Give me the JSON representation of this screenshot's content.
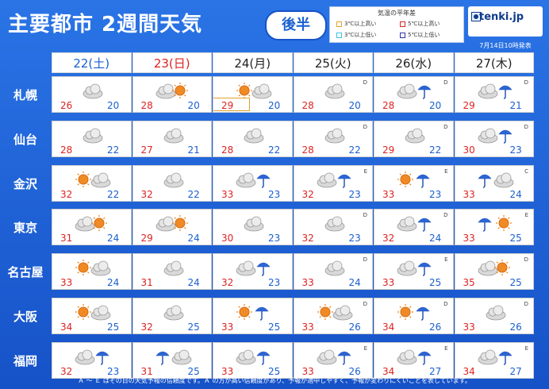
{
  "title": "主要都市 2週間天気",
  "badge": "後半",
  "legend": {
    "title": "気温の平年差",
    "items": [
      "3℃以上高い",
      "5℃以上高い",
      "3℃以上低い",
      "5℃以上低い"
    ],
    "colors": [
      "#e8a030",
      "#d22",
      "#3cc0e0",
      "#3030b0"
    ]
  },
  "logo": "tenki.jp",
  "issued": "7月14日10時発表",
  "days": [
    {
      "label": "22(土)",
      "color": "#1a5fd0"
    },
    {
      "label": "23(日)",
      "color": "#d22"
    },
    {
      "label": "24(月)",
      "color": "#222"
    },
    {
      "label": "25(火)",
      "color": "#222"
    },
    {
      "label": "26(水)",
      "color": "#222"
    },
    {
      "label": "27(木)",
      "color": "#222"
    }
  ],
  "cities": [
    {
      "name": "札幌",
      "cells": [
        {
          "w": "cloud",
          "hi": "26",
          "lo": "20"
        },
        {
          "w": "cloud-sun",
          "hi": "28",
          "lo": "20"
        },
        {
          "w": "sun-cloud",
          "hi": "29",
          "lo": "20",
          "mark": true
        },
        {
          "w": "cloud",
          "hi": "28",
          "lo": "20",
          "r": "D"
        },
        {
          "w": "cloud-rain",
          "hi": "28",
          "lo": "20",
          "r": "D"
        },
        {
          "w": "cloud-rain",
          "hi": "29",
          "lo": "21",
          "r": "D"
        }
      ]
    },
    {
      "name": "仙台",
      "cells": [
        {
          "w": "cloud",
          "hi": "28",
          "lo": "22"
        },
        {
          "w": "cloud",
          "hi": "27",
          "lo": "21"
        },
        {
          "w": "cloud",
          "hi": "28",
          "lo": "22"
        },
        {
          "w": "cloud",
          "hi": "28",
          "lo": "22",
          "r": "D"
        },
        {
          "w": "cloud",
          "hi": "29",
          "lo": "22",
          "r": "D"
        },
        {
          "w": "cloud-rain",
          "hi": "30",
          "lo": "23",
          "r": "D"
        }
      ]
    },
    {
      "name": "金沢",
      "cells": [
        {
          "w": "sun-cloud",
          "hi": "32",
          "lo": "22"
        },
        {
          "w": "cloud",
          "hi": "32",
          "lo": "22"
        },
        {
          "w": "cloud-rain",
          "hi": "33",
          "lo": "23"
        },
        {
          "w": "cloud-rain",
          "hi": "32",
          "lo": "23",
          "r": "E"
        },
        {
          "w": "sun-rain",
          "hi": "33",
          "lo": "23",
          "r": "E"
        },
        {
          "w": "rain-cloud",
          "hi": "33",
          "lo": "24",
          "r": "C"
        }
      ]
    },
    {
      "name": "東京",
      "cells": [
        {
          "w": "cloud-sun",
          "hi": "31",
          "lo": "24"
        },
        {
          "w": "cloud-sun",
          "hi": "29",
          "lo": "24"
        },
        {
          "w": "cloud",
          "hi": "30",
          "lo": "23"
        },
        {
          "w": "cloud",
          "hi": "32",
          "lo": "23",
          "r": "D"
        },
        {
          "w": "cloud-rain",
          "hi": "32",
          "lo": "24",
          "r": "D"
        },
        {
          "w": "rain-sun",
          "hi": "33",
          "lo": "25",
          "r": "E"
        }
      ]
    },
    {
      "name": "名古屋",
      "cells": [
        {
          "w": "sun-cloud",
          "hi": "33",
          "lo": "24"
        },
        {
          "w": "cloud",
          "hi": "31",
          "lo": "24"
        },
        {
          "w": "cloud-rain",
          "hi": "32",
          "lo": "23"
        },
        {
          "w": "cloud",
          "hi": "33",
          "lo": "24",
          "r": "D"
        },
        {
          "w": "cloud-rain",
          "hi": "33",
          "lo": "25",
          "r": "E"
        },
        {
          "w": "cloud-sun",
          "hi": "35",
          "lo": "25",
          "r": "D"
        }
      ]
    },
    {
      "name": "大阪",
      "cells": [
        {
          "w": "sun-cloud",
          "hi": "34",
          "lo": "25"
        },
        {
          "w": "cloud",
          "hi": "32",
          "lo": "25"
        },
        {
          "w": "sun-rain",
          "hi": "33",
          "lo": "25"
        },
        {
          "w": "sun-cloud",
          "hi": "33",
          "lo": "26",
          "r": "D"
        },
        {
          "w": "sun-rain",
          "hi": "34",
          "lo": "26",
          "r": "D"
        },
        {
          "w": "cloud",
          "hi": "33",
          "lo": "26",
          "r": "D"
        }
      ]
    },
    {
      "name": "福岡",
      "cells": [
        {
          "w": "cloud-rain",
          "hi": "32",
          "lo": "23"
        },
        {
          "w": "rain-cloud",
          "hi": "31",
          "lo": "25"
        },
        {
          "w": "cloud-rain",
          "hi": "33",
          "lo": "25"
        },
        {
          "w": "cloud-rain",
          "hi": "33",
          "lo": "26",
          "r": "E"
        },
        {
          "w": "cloud-rain",
          "hi": "34",
          "lo": "27",
          "r": "E"
        },
        {
          "w": "cloud-rain",
          "hi": "34",
          "lo": "27",
          "r": "E"
        }
      ]
    }
  ],
  "footer": "Ａ ～ Ｅ はその日の天気予報の信頼度です。Ａ の方が高い信頼度があり、予報が適中しやすく、予報が変わりにくいことを表しています。"
}
